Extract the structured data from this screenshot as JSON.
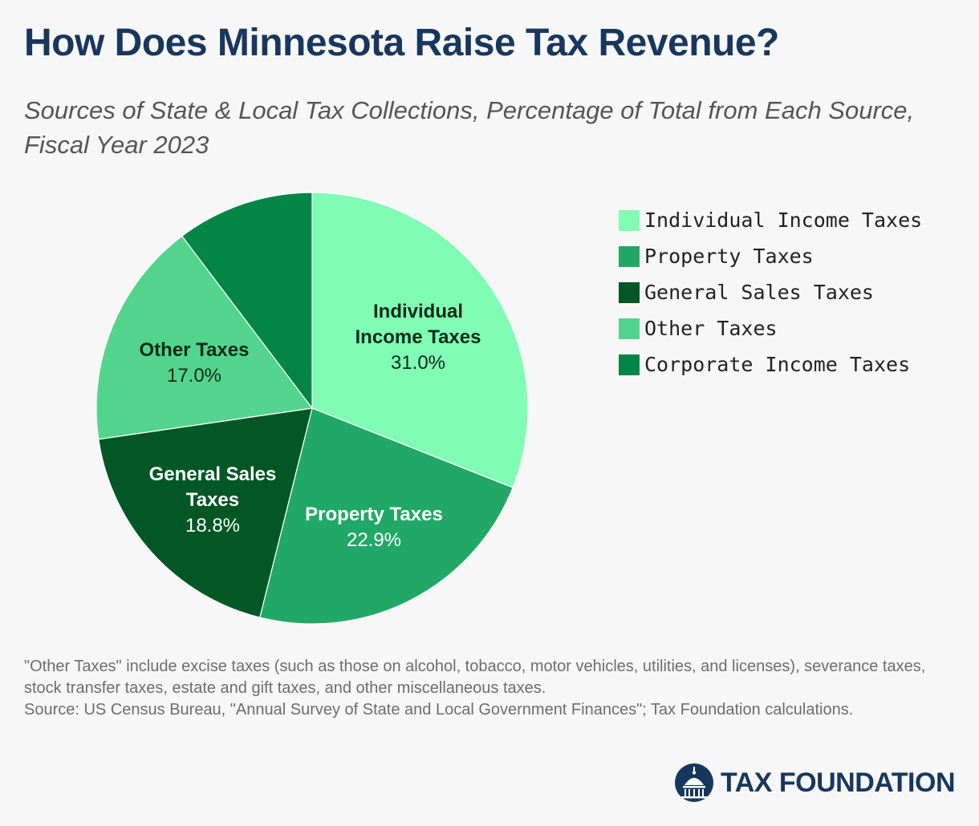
{
  "header": {
    "title": "How Does Minnesota Raise Tax Revenue?",
    "subtitle": "Sources of State & Local Tax Collections, Percentage of Total from Each Source, Fiscal Year 2023"
  },
  "chart_data": {
    "type": "pie",
    "title": "How Does Minnesota Raise Tax Revenue?",
    "subtitle": "Sources of State & Local Tax Collections, Percentage of Total from Each Source, Fiscal Year 2023",
    "legend_position": "right",
    "slices": [
      {
        "name": "Individual Income Taxes",
        "value": 31.0,
        "value_label": "31.0%",
        "label_lines": [
          "Individual",
          "Income Taxes"
        ],
        "color": "#80fcb4",
        "text_color": "#0b2a1a"
      },
      {
        "name": "Property Taxes",
        "value": 22.9,
        "value_label": "22.9%",
        "label_lines": [
          "Property Taxes"
        ],
        "color": "#21a867",
        "text_color": "#ffffff"
      },
      {
        "name": "General Sales Taxes",
        "value": 18.8,
        "value_label": "18.8%",
        "label_lines": [
          "General Sales",
          "Taxes"
        ],
        "color": "#025725",
        "text_color": "#ffffff"
      },
      {
        "name": "Other Taxes",
        "value": 17.0,
        "value_label": "17.0%",
        "label_lines": [
          "Other Taxes"
        ],
        "color": "#53d48c",
        "text_color": "#0b2a1a"
      },
      {
        "name": "Corporate Income Taxes",
        "value": 10.3,
        "value_label": "",
        "label_lines": [],
        "color": "#038545",
        "text_color": "#ffffff"
      }
    ]
  },
  "legend": {
    "items": [
      {
        "label": "Individual Income Taxes",
        "color": "#80fcb4"
      },
      {
        "label": "Property Taxes",
        "color": "#21a867"
      },
      {
        "label": "General Sales Taxes",
        "color": "#025725"
      },
      {
        "label": "Other Taxes",
        "color": "#53d48c"
      },
      {
        "label": "Corporate Income Taxes",
        "color": "#038545"
      }
    ]
  },
  "footnote": {
    "line1": "\"Other Taxes\" include excise taxes (such as those on alcohol, tobacco, motor vehicles, utilities, and licenses), severance taxes, stock transfer taxes, estate and gift taxes, and other miscellaneous taxes.",
    "line2": "Source: US Census Bureau, \"Annual Survey of State and Local Government Finances\"; Tax Foundation calculations."
  },
  "logo": {
    "text": "TAX FOUNDATION",
    "icon": "capitol-dome-icon"
  }
}
